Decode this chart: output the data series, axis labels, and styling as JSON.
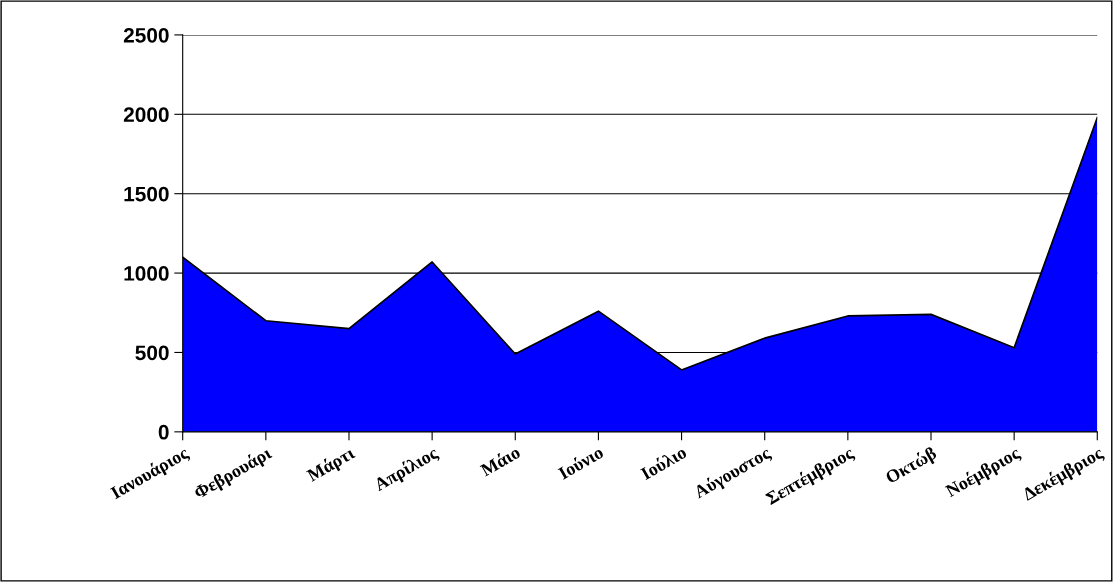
{
  "chart_data": {
    "type": "area",
    "categories": [
      "Ιανουάριος",
      "Φεβρουάρι",
      "Μάρτι",
      "Απρίλιος",
      "Μάιο",
      "Ιούνιο",
      "Ιούλιο",
      "Αύγουστος",
      "Σεπτέμβριος",
      "Οκτώβ",
      "Νοέμβριος",
      "Δεκέμβριος"
    ],
    "series": [
      {
        "color": "#0000ff",
        "values": [
          1100,
          700,
          650,
          1070,
          490,
          760,
          390,
          590,
          730,
          740,
          530,
          1980
        ]
      }
    ],
    "ylim": [
      0,
      2500
    ],
    "yticks": [
      0,
      500,
      1000,
      1500,
      2000,
      2500
    ],
    "grid": "y",
    "legend": false
  }
}
